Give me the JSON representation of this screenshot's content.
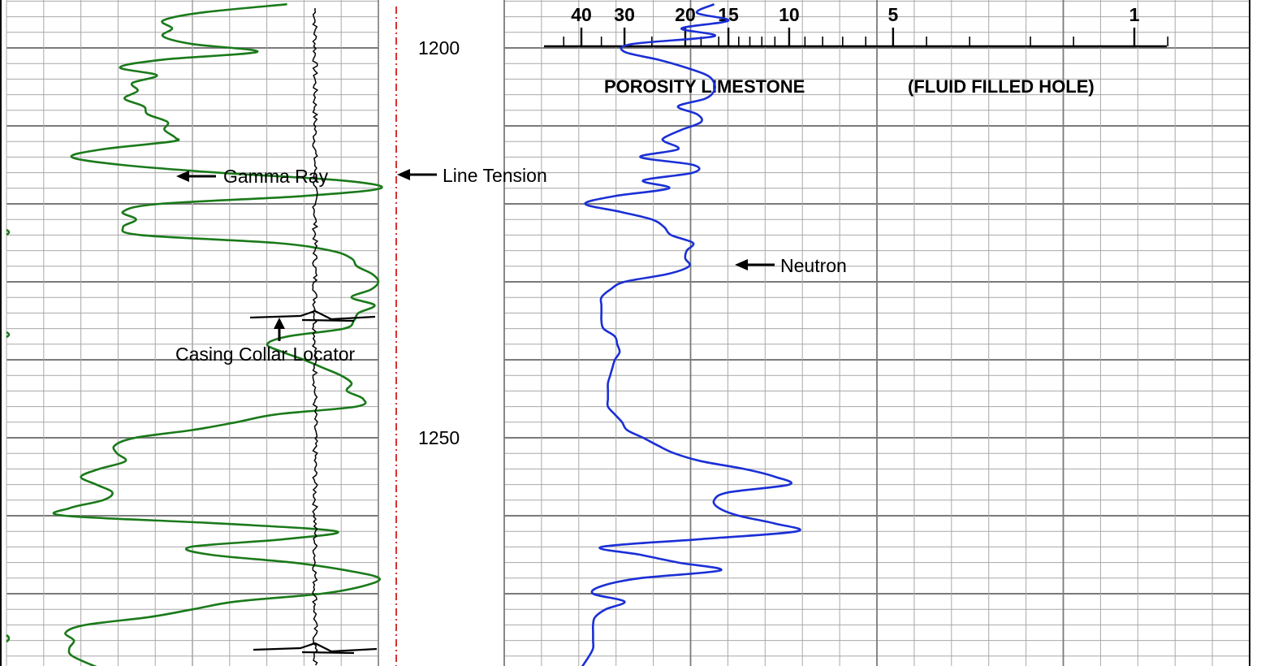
{
  "chart_data": {
    "type": "line",
    "depth_axis": {
      "ylim": [
        1194,
        1280
      ],
      "labels": [
        "1200",
        "1250"
      ]
    },
    "header": {
      "porosity_label": "POROSITY LIMESTONE",
      "condition_label": "(FLUID FILLED HOLE)"
    },
    "porosity_scale": {
      "scale": "log",
      "range": [
        0.7,
        45
      ],
      "tick_labels": [
        {
          "value": 40,
          "text": "40"
        },
        {
          "value": 30,
          "text": "30"
        },
        {
          "value": 20,
          "text": "20"
        },
        {
          "value": 15,
          "text": "15"
        },
        {
          "value": 10,
          "text": "10"
        },
        {
          "value": 5,
          "text": "5"
        },
        {
          "value": 1,
          "text": "1"
        }
      ]
    },
    "annotations": {
      "gamma_ray": "Gamma Ray",
      "line_tension": "Line Tension",
      "casing_collar_locator": "Casing Collar Locator",
      "neutron": "Neutron"
    },
    "colors": {
      "gamma_ray": "#1a7a1a",
      "neutron": "#1a2fd6",
      "line_tension": "#cc0000",
      "ccl": "#000000",
      "grid": "#a8a8a8"
    },
    "series": [
      {
        "id": "gamma_ray",
        "name": "Gamma Ray",
        "track": "track1",
        "depth": [
          1194.4,
          1195.5,
          1196.5,
          1197.5,
          1198.5,
          1199.5,
          1200.5,
          1201.5,
          1202.5,
          1203.5,
          1204.5,
          1205.5,
          1206.5,
          1207.5,
          1208.5,
          1209.5,
          1210.5,
          1211.5,
          1212,
          1213,
          1214,
          1215,
          1216,
          1217,
          1218,
          1219,
          1220,
          1221,
          1222,
          1223,
          1224,
          1225,
          1226,
          1227,
          1228,
          1229,
          1230,
          1231,
          1232,
          1233,
          1234,
          1235,
          1236,
          1237,
          1238,
          1239,
          1240,
          1241,
          1242,
          1243,
          1244,
          1245,
          1246,
          1247,
          1248,
          1249,
          1250,
          1251,
          1252,
          1253,
          1254,
          1255,
          1256,
          1257,
          1258,
          1259,
          1260,
          1261,
          1262,
          1263,
          1264,
          1265,
          1266,
          1267,
          1268,
          1269,
          1270,
          1271,
          1272,
          1273,
          1274,
          1275,
          1276,
          1277,
          1278,
          1279.5
        ],
        "value": [
          36.6,
          25.2,
          20.4,
          21.6,
          20.4,
          24.2,
          32.7,
          20.4,
          14.8,
          19.6,
          16.4,
          17.1,
          15.4,
          17.9,
          18.4,
          21,
          20.6,
          22,
          21.6,
          12.5,
          8.5,
          15,
          27.6,
          43.7,
          48.8,
          38.6,
          20,
          15.2,
          16.9,
          15.2,
          17.5,
          35,
          42.3,
          45,
          45.7,
          47.7,
          48.5,
          47.5,
          45,
          48,
          45.9,
          45.3,
          44,
          36.7,
          34,
          36,
          38.8,
          41.2,
          43.6,
          45,
          44.4,
          46.5,
          45.6,
          35.2,
          30,
          24.3,
          16.8,
          14.1,
          14.4,
          15.5,
          12.1,
          9.7,
          11.7,
          13.8,
          12.6,
          8.3,
          7.6,
          28,
          43,
          36.3,
          24,
          26.6,
          37.3,
          44.3,
          48.6,
          46.6,
          41.1,
          30,
          24.3,
          18.6,
          10.3,
          7.7,
          8.8,
          8.2,
          8.6,
          12
        ],
        "xlim": [
          0,
          48.5
        ]
      },
      {
        "id": "neutron",
        "name": "Neutron",
        "track": "track3",
        "depth": [
          1194.4,
          1195.5,
          1196.5,
          1197.5,
          1198.5,
          1199.5,
          1200.5,
          1201.5,
          1202.5,
          1203.5,
          1204.5,
          1205.5,
          1206.5,
          1207.5,
          1208.5,
          1209.5,
          1210.5,
          1211.5,
          1212,
          1213,
          1214,
          1215,
          1216,
          1217,
          1218,
          1219,
          1220,
          1221,
          1222,
          1223,
          1224,
          1225,
          1226,
          1227,
          1228,
          1229,
          1230,
          1231,
          1232,
          1233,
          1234,
          1235,
          1236,
          1237,
          1238,
          1239,
          1240,
          1241,
          1242,
          1243,
          1244,
          1245,
          1246,
          1247,
          1248,
          1249,
          1250,
          1251,
          1252,
          1253,
          1254,
          1255,
          1256,
          1257,
          1258,
          1259,
          1260,
          1261,
          1262,
          1263,
          1264,
          1265,
          1266,
          1267,
          1268,
          1269,
          1270,
          1271,
          1272,
          1273,
          1274,
          1275,
          1276,
          1277,
          1278,
          1279.5
        ],
        "value": [
          16.5,
          18.5,
          15,
          20.5,
          16.5,
          28.5,
          30,
          24,
          20,
          17.3,
          16.5,
          16.5,
          17.5,
          21,
          18.5,
          18,
          20.5,
          23,
          23,
          21,
          27,
          19,
          19,
          26.5,
          22.3,
          32,
          39,
          31,
          25,
          23,
          22,
          19,
          19.8,
          20,
          19.5,
          22.5,
          30,
          33,
          35,
          35,
          35,
          35,
          34.5,
          32,
          31.5,
          31,
          32,
          32.5,
          33,
          33.5,
          33.5,
          33.5,
          33.5,
          32,
          30.5,
          29.5,
          26.5,
          24,
          21.5,
          18,
          13.5,
          11,
          10,
          15,
          16.5,
          16,
          14,
          11,
          9.5,
          18,
          35,
          27,
          21,
          15.8,
          27,
          34.8,
          37,
          30,
          34,
          36.5,
          37,
          37,
          37,
          37,
          38,
          40
        ],
        "xlim": [
          0.7,
          45
        ]
      }
    ]
  }
}
